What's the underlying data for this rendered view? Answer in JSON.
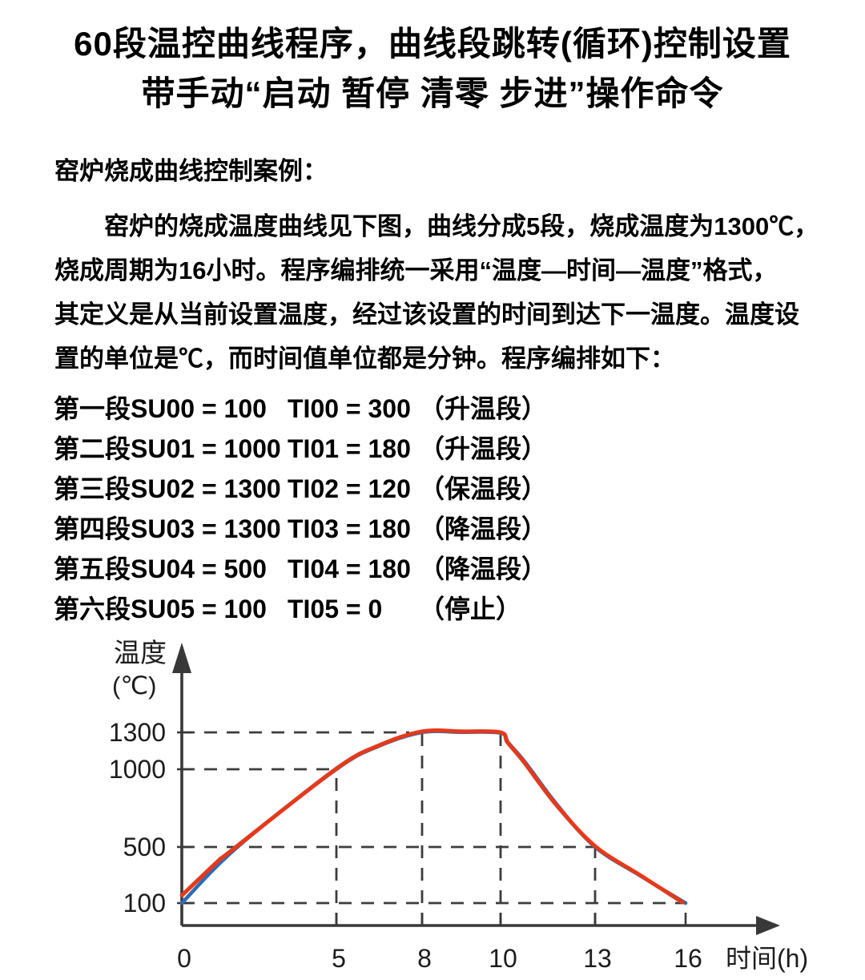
{
  "title": {
    "line1": "60段温控曲线程序，曲线段跳转(循环)控制设置",
    "line2": "带手动“启动 暂停 清零 步进”操作命令"
  },
  "section_heading": "窑炉烧成曲线控制案例：",
  "paragraph": {
    "lines": [
      "窑炉的烧成温度曲线见下图，曲线分成5段，烧成温度为1300℃，",
      "烧成周期为16小时。程序编排统一采用“温度—时间—温度”格式，",
      "其定义是从当前设置温度，经过该设置的时间到达下一温度。温度设",
      "置的单位是℃，而时间值单位都是分钟。程序编排如下："
    ]
  },
  "program": {
    "rows": [
      {
        "seg": "第一段",
        "su": "SU00 = 100",
        "ti": "TI00 = 300",
        "note": "（升温段）"
      },
      {
        "seg": "第二段",
        "su": "SU01 = 1000",
        "ti": "TI01 = 180",
        "note": "（升温段）"
      },
      {
        "seg": "第三段",
        "su": "SU02 = 1300",
        "ti": "TI02 = 120",
        "note": "（保温段）"
      },
      {
        "seg": "第四段",
        "su": "SU03 = 1300",
        "ti": "TI03 = 180",
        "note": "（降温段）"
      },
      {
        "seg": "第五段",
        "su": "SU04 = 500",
        "ti": "TI04 = 180",
        "note": "（降温段）"
      },
      {
        "seg": "第六段",
        "su": "SU05 = 100",
        "ti": "TI05 = 0",
        "note": "（停止）"
      }
    ]
  },
  "chart_data": {
    "type": "line",
    "title": "",
    "xlabel": "时间(h)",
    "ylabel": "温度",
    "ylabel_unit": "(℃)",
    "x_ticks": [
      0,
      5,
      8,
      10,
      13,
      16
    ],
    "y_ticks": [
      100,
      500,
      1000,
      1300
    ],
    "xlim": [
      0,
      17.5
    ],
    "ylim": [
      0,
      1500
    ],
    "grid": "dashed guide lines at tick values only",
    "legend_position": "none",
    "colors": {
      "set_curve_red": "#e43a1b",
      "actual_curve_blue": "#2e6cb4",
      "axis": "#383838",
      "dash": "#3c3c3c"
    },
    "key_points": [
      [
        0,
        100
      ],
      [
        5,
        1000
      ],
      [
        8,
        1300
      ],
      [
        10,
        1300
      ],
      [
        13,
        500
      ],
      [
        16,
        100
      ]
    ],
    "series": [
      {
        "name": "actual-curve-blue",
        "color": "#2e6cb4",
        "points": [
          [
            0,
            100
          ],
          [
            1.8,
            500
          ],
          [
            5,
            1000
          ],
          [
            6.5,
            1190
          ],
          [
            8,
            1300
          ],
          [
            9,
            1302
          ],
          [
            10,
            1295
          ],
          [
            10.25,
            1215
          ],
          [
            10.8,
            1050
          ],
          [
            11.8,
            770
          ],
          [
            13,
            500
          ],
          [
            14.5,
            295
          ],
          [
            16,
            100
          ]
        ]
      },
      {
        "name": "set-curve-red",
        "color": "#e43a1b",
        "points": [
          [
            0,
            155
          ],
          [
            1.2,
            405
          ],
          [
            1.55,
            465
          ],
          [
            5,
            1005
          ],
          [
            6.5,
            1195
          ],
          [
            8,
            1308
          ],
          [
            9,
            1308
          ],
          [
            10,
            1300
          ],
          [
            10.22,
            1218
          ],
          [
            10.75,
            1055
          ],
          [
            11.75,
            775
          ],
          [
            13,
            505
          ],
          [
            14.5,
            298
          ],
          [
            15.9,
            105
          ]
        ]
      }
    ],
    "guides": {
      "horizontal": [
        {
          "y": 1300,
          "x_to": 7.55
        },
        {
          "y": 1000,
          "x_to": 5
        },
        {
          "y": 500,
          "x_to": 13
        },
        {
          "y": 100,
          "x_to": 16.05
        }
      ],
      "vertical": [
        {
          "x": 5,
          "y_to": 1000
        },
        {
          "x": 8,
          "y_to": 1300
        },
        {
          "x": 10,
          "y_to": 1280
        },
        {
          "x": 13,
          "y_to": 500
        }
      ]
    }
  }
}
